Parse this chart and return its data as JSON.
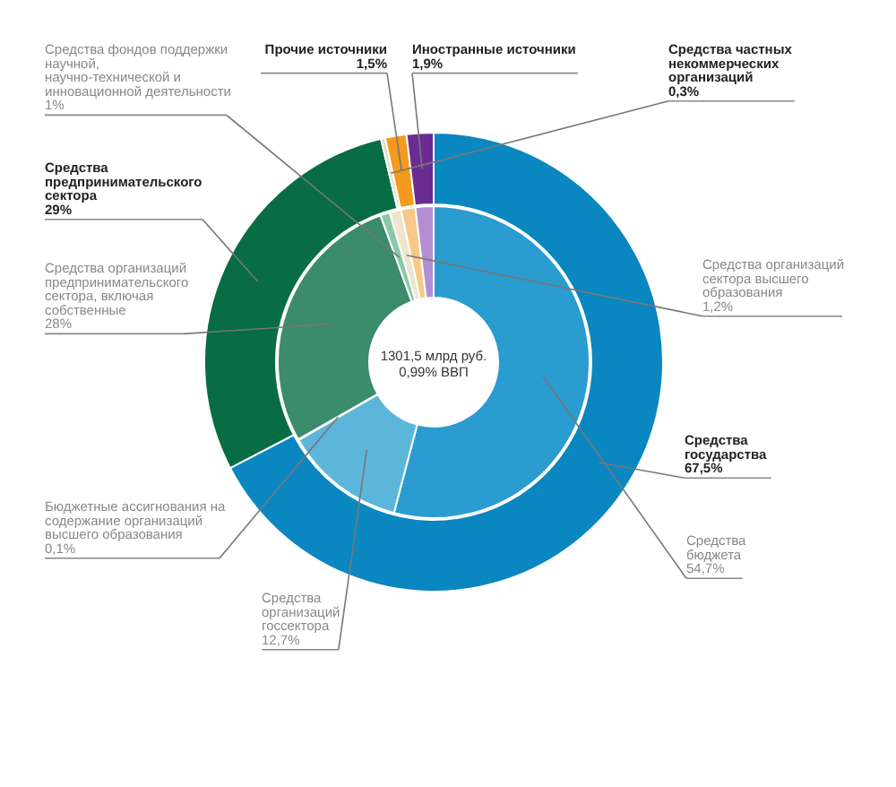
{
  "chart_data": [
    {
      "type": "donut",
      "title": "1301,5 млрд руб.",
      "subtitle": "0,99% ВВП",
      "categories": [
        "Средства государства",
        "Средства предпринимательского сектора",
        "Средства частных некоммерческих организаций",
        "Прочие источники",
        "Иностранные источники"
      ],
      "values": [
        67.5,
        29,
        0.3,
        1.5,
        1.9
      ],
      "value_labels": [
        "67,5%",
        "29%",
        "0,3%",
        "1,5%",
        "1,9%"
      ],
      "colors": [
        "#0a86c0",
        "#086c44",
        "#e6dcc0",
        "#f59a1c",
        "#6a2c91"
      ]
    },
    {
      "type": "donut",
      "categories": [
        "Средства бюджета",
        "Средства организаций госсектора",
        "Бюджетные ассигнования на содержание организаций высшего образования",
        "Средства организаций предпринимательского сектора, включая собственные",
        "Средства фондов поддержки научной, научно-технической и инновационной деятельности",
        "Средства организаций сектора высшего образования",
        null,
        null
      ],
      "values": [
        54.7,
        12.7,
        0.1,
        28,
        1,
        1.2,
        1.5,
        1.9
      ],
      "value_labels": [
        "54,7%",
        "12,7%",
        "0,1%",
        "28%",
        "1%",
        "1,2%",
        null,
        null
      ],
      "colors": [
        "#2a9cd0",
        "#5cb6da",
        "#3aa2d2",
        "#3a8c6a",
        "#8cc8a8",
        "#eee6cc",
        "#f8c888",
        "#b48ed2"
      ]
    }
  ]
}
